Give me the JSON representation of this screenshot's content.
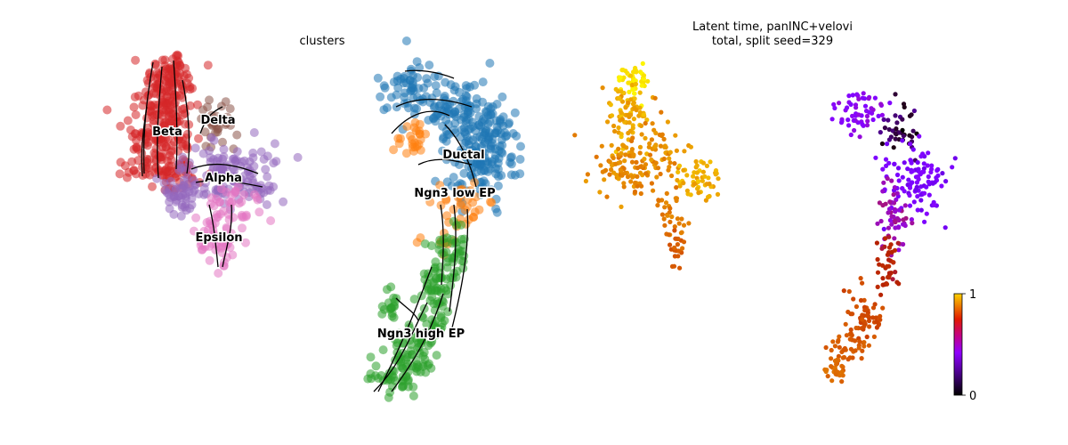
{
  "chart_data": [
    {
      "type": "scatter",
      "subtype": "umap-velocity-stream",
      "title": "clusters",
      "legend": "on-data labels",
      "grid": false,
      "axes": "hidden",
      "clusters": [
        {
          "name": "Beta",
          "color": "#d62728"
        },
        {
          "name": "Delta",
          "color": "#8c564b"
        },
        {
          "name": "Alpha",
          "color": "#9467bd"
        },
        {
          "name": "Epsilon",
          "color": "#e377c2"
        },
        {
          "name": "Ductal",
          "color": "#1f77b4"
        },
        {
          "name": "Ngn3 low EP",
          "color": "#ff7f0e"
        },
        {
          "name": "Ngn3 high EP",
          "color": "#2ca02c"
        }
      ]
    },
    {
      "type": "scatter",
      "subtype": "umap-latent-time",
      "title_lines": [
        "Latent time, panINC+velovi",
        "total, split seed=329"
      ],
      "grid": false,
      "axes": "hidden",
      "colormap": "gnuplot",
      "colorbar": {
        "range": [
          0,
          1
        ],
        "ticks": [
          "0",
          "1"
        ],
        "position": "right"
      }
    }
  ],
  "colors": {
    "stream": "#000000",
    "background": "#ffffff"
  }
}
